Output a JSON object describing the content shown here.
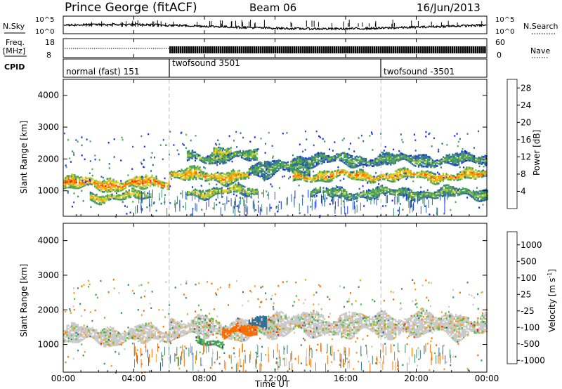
{
  "header": {
    "station": "Prince George (fitACF)",
    "beam": "Beam 06",
    "date": "16/Jun/2013"
  },
  "noise_panel": {
    "left_label": "N.Sky",
    "right_label": "N.Search",
    "left_ticks": [
      "10^5",
      "10^0"
    ],
    "right_ticks": [
      "10^5",
      "10^0"
    ]
  },
  "freq_panel": {
    "left_label_1": "Freq.",
    "left_label_2": "[MHz]",
    "right_label": "Nave",
    "left_ticks": [
      "18",
      "8"
    ],
    "right_ticks": [
      "60",
      "0"
    ]
  },
  "cpid_panel": {
    "label": "CPID",
    "segments": [
      {
        "label": "normal (fast) 151",
        "start_hour": 0,
        "end_hour": 6
      },
      {
        "label": "twofsound 3501",
        "start_hour": 6,
        "end_hour": 18
      },
      {
        "label": "twofsound -3501",
        "start_hour": 18,
        "end_hour": 24
      }
    ]
  },
  "time_axis": {
    "label": "Time UT",
    "tick_labels": [
      "00:00",
      "04:00",
      "08:00",
      "12:00",
      "16:00",
      "20:00",
      "00:00"
    ],
    "tick_hours": [
      0,
      4,
      8,
      12,
      16,
      20,
      24
    ],
    "range_hours": [
      0,
      24
    ]
  },
  "chart_data": [
    {
      "type": "heatmap",
      "name": "power",
      "ylabel": "Slant Range [km]",
      "ylim": [
        200,
        4500
      ],
      "yticks": [
        1000,
        2000,
        3000,
        4000
      ],
      "colorbar": {
        "label": "Power [dB]",
        "ticks": [
          "4",
          "8",
          "12",
          "16",
          "20",
          "24",
          "28"
        ],
        "tick_values": [
          4,
          8,
          12,
          16,
          20,
          24,
          28
        ],
        "range": [
          0,
          30
        ],
        "colors": [
          "#1428ff",
          "#2b5ea8",
          "#3c8a6e",
          "#4fa84f",
          "#a9c63a",
          "#f0d020",
          "#ff9a00",
          "#ff5a00",
          "#ff1a00"
        ]
      },
      "echo_bands": [
        {
          "start_hour": 0.0,
          "end_hour": 6.0,
          "center_km": 1200,
          "width_km": 380,
          "db": 26
        },
        {
          "start_hour": 1.5,
          "end_hour": 5.0,
          "center_km": 800,
          "width_km": 250,
          "db": 20
        },
        {
          "start_hour": 6.0,
          "end_hour": 10.5,
          "center_km": 1450,
          "width_km": 400,
          "db": 22
        },
        {
          "start_hour": 7.0,
          "end_hour": 11.0,
          "center_km": 2050,
          "width_km": 320,
          "db": 14
        },
        {
          "start_hour": 7.0,
          "end_hour": 11.0,
          "center_km": 950,
          "width_km": 260,
          "db": 18
        },
        {
          "start_hour": 10.5,
          "end_hour": 14.0,
          "center_km": 1700,
          "width_km": 500,
          "db": 12
        },
        {
          "start_hour": 13.0,
          "end_hour": 24.0,
          "center_km": 1450,
          "width_km": 300,
          "db": 24
        },
        {
          "start_hour": 13.0,
          "end_hour": 24.0,
          "center_km": 1950,
          "width_km": 350,
          "db": 12
        },
        {
          "start_hour": 14.0,
          "end_hour": 24.0,
          "center_km": 900,
          "width_km": 300,
          "db": 14
        },
        {
          "start_hour": 8.5,
          "end_hour": 9.5,
          "center_km": 2250,
          "width_km": 260,
          "db": 18
        }
      ]
    },
    {
      "type": "heatmap",
      "name": "velocity",
      "ylabel": "Slant Range [km]",
      "ylim": [
        200,
        4500
      ],
      "yticks": [
        1000,
        2000,
        3000,
        4000
      ],
      "colorbar": {
        "label": "Velocity [m s^-1]",
        "ticks": [
          "1000",
          "500",
          "100",
          "25",
          "-25",
          "-100",
          "-500",
          "-1000"
        ],
        "colors": [
          "#1a3cb0",
          "#2f6e98",
          "#3a8a70",
          "#55c03a",
          "#c8c8c8",
          "#f0a020",
          "#ff6a00",
          "#ff1a00"
        ]
      },
      "echo_bands": [
        {
          "start_hour": 0.0,
          "end_hour": 6.0,
          "center_km": 1250,
          "width_km": 500,
          "vel": 0
        },
        {
          "start_hour": 6.0,
          "end_hour": 12.0,
          "center_km": 1450,
          "width_km": 600,
          "vel": 0
        },
        {
          "start_hour": 7.5,
          "end_hour": 9.0,
          "center_km": 1050,
          "width_km": 200,
          "vel": 60
        },
        {
          "start_hour": 9.0,
          "end_hour": 11.0,
          "center_km": 1350,
          "width_km": 300,
          "vel": -400
        },
        {
          "start_hour": 11.0,
          "end_hour": 24.0,
          "center_km": 1550,
          "width_km": 700,
          "vel": 0
        },
        {
          "start_hour": 10.5,
          "end_hour": 11.5,
          "center_km": 1700,
          "width_km": 300,
          "vel": 300
        }
      ]
    }
  ]
}
